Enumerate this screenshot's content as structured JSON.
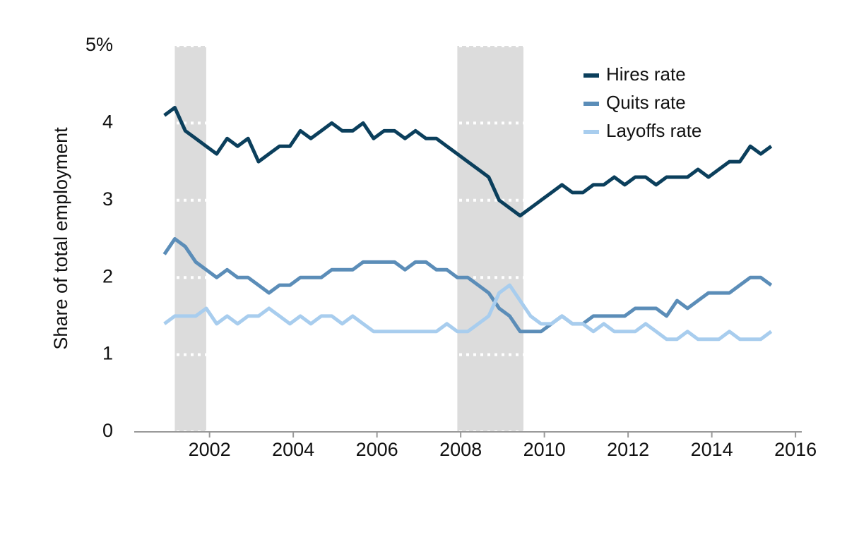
{
  "chart_data": {
    "type": "line",
    "y_label": "Share of total employment",
    "xlim": [
      2000.2,
      2016.15
    ],
    "xticks": [
      2002,
      2004,
      2006,
      2008,
      2010,
      2012,
      2014,
      2016
    ],
    "ylim": [
      0,
      5
    ],
    "yticks": [
      0,
      1,
      2,
      3,
      4,
      {
        "value": 5,
        "label": "5%"
      }
    ],
    "grid": true,
    "legend": "upper right",
    "recessions": [
      [
        2001.17,
        2001.92
      ],
      [
        2007.92,
        2009.5
      ]
    ],
    "x": [
      2000.92,
      2001.17,
      2001.42,
      2001.67,
      2001.92,
      2002.17,
      2002.42,
      2002.67,
      2002.92,
      2003.17,
      2003.42,
      2003.67,
      2003.92,
      2004.17,
      2004.42,
      2004.67,
      2004.92,
      2005.17,
      2005.42,
      2005.67,
      2005.92,
      2006.17,
      2006.42,
      2006.67,
      2006.92,
      2007.17,
      2007.42,
      2007.67,
      2007.92,
      2008.17,
      2008.42,
      2008.67,
      2008.92,
      2009.17,
      2009.42,
      2009.67,
      2009.92,
      2010.17,
      2010.42,
      2010.67,
      2010.92,
      2011.17,
      2011.42,
      2011.67,
      2011.92,
      2012.17,
      2012.42,
      2012.67,
      2012.92,
      2013.17,
      2013.42,
      2013.67,
      2013.92,
      2014.17,
      2014.42,
      2014.67,
      2014.92,
      2015.17,
      2015.42
    ],
    "series": [
      {
        "name": "Hires rate",
        "color": "#0b3f5c",
        "values": [
          4.1,
          4.2,
          3.9,
          3.8,
          3.7,
          3.6,
          3.8,
          3.7,
          3.8,
          3.5,
          3.6,
          3.7,
          3.7,
          3.9,
          3.8,
          3.9,
          4.0,
          3.9,
          3.9,
          4.0,
          3.8,
          3.9,
          3.9,
          3.8,
          3.9,
          3.8,
          3.8,
          3.7,
          3.6,
          3.5,
          3.4,
          3.3,
          3.0,
          2.9,
          2.8,
          2.9,
          3.0,
          3.1,
          3.2,
          3.1,
          3.1,
          3.2,
          3.2,
          3.3,
          3.2,
          3.3,
          3.3,
          3.2,
          3.3,
          3.3,
          3.3,
          3.4,
          3.3,
          3.4,
          3.5,
          3.5,
          3.7,
          3.6,
          3.7
        ]
      },
      {
        "name": "Quits rate",
        "color": "#5b8db8",
        "values": [
          2.3,
          2.5,
          2.4,
          2.2,
          2.1,
          2.0,
          2.1,
          2.0,
          2.0,
          1.9,
          1.8,
          1.9,
          1.9,
          2.0,
          2.0,
          2.0,
          2.1,
          2.1,
          2.1,
          2.2,
          2.2,
          2.2,
          2.2,
          2.1,
          2.2,
          2.2,
          2.1,
          2.1,
          2.0,
          2.0,
          1.9,
          1.8,
          1.6,
          1.5,
          1.3,
          1.3,
          1.3,
          1.4,
          1.5,
          1.4,
          1.4,
          1.5,
          1.5,
          1.5,
          1.5,
          1.6,
          1.6,
          1.6,
          1.5,
          1.7,
          1.6,
          1.7,
          1.8,
          1.8,
          1.8,
          1.9,
          2.0,
          2.0,
          1.9
        ]
      },
      {
        "name": "Layoffs rate",
        "color": "#a8cdee",
        "values": [
          1.4,
          1.5,
          1.5,
          1.5,
          1.6,
          1.4,
          1.5,
          1.4,
          1.5,
          1.5,
          1.6,
          1.5,
          1.4,
          1.5,
          1.4,
          1.5,
          1.5,
          1.4,
          1.5,
          1.4,
          1.3,
          1.3,
          1.3,
          1.3,
          1.3,
          1.3,
          1.3,
          1.4,
          1.3,
          1.3,
          1.4,
          1.5,
          1.8,
          1.9,
          1.7,
          1.5,
          1.4,
          1.4,
          1.5,
          1.4,
          1.4,
          1.3,
          1.4,
          1.3,
          1.3,
          1.3,
          1.4,
          1.3,
          1.2,
          1.2,
          1.3,
          1.2,
          1.2,
          1.2,
          1.3,
          1.2,
          1.2,
          1.2,
          1.3
        ]
      }
    ]
  }
}
